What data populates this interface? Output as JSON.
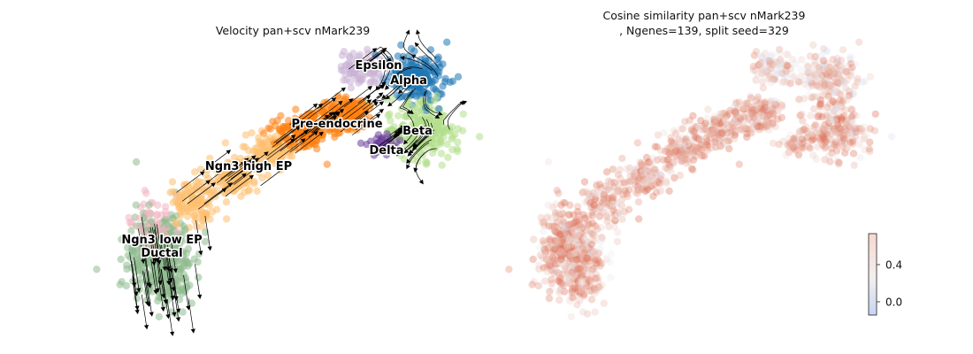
{
  "chart_data": [
    {
      "type": "scatter",
      "subtype": "embedding-velocity-stream",
      "title": "Velocity pan+scv nMark239",
      "axes_visible": false,
      "grid": false,
      "clusters": [
        {
          "name": "Ductal",
          "color": "#8fbc8f"
        },
        {
          "name": "Ngn3 low EP",
          "color": "#f4b6c2"
        },
        {
          "name": "Ngn3 high EP",
          "color": "#fdbf6f"
        },
        {
          "name": "Pre-endocrine",
          "color": "#ff7f0e"
        },
        {
          "name": "Beta",
          "color": "#b2df8a"
        },
        {
          "name": "Alpha",
          "color": "#1f77b4"
        },
        {
          "name": "Delta",
          "color": "#6a3d9a"
        },
        {
          "name": "Epsilon",
          "color": "#cab2d6"
        }
      ],
      "stream_arrows": true
    },
    {
      "type": "scatter",
      "subtype": "embedding-colored",
      "title": "Cosine similarity pan+scv nMark239",
      "title_line2": ", Ngenes=139, split seed=329",
      "axes_visible": false,
      "grid": false,
      "colorbar": {
        "ticks": [
          "0.0",
          "0.4"
        ],
        "colormap": "coolwarm",
        "low_color": "#c9d3f2",
        "mid_color": "#f2efee",
        "high_color": "#dd6b4f"
      }
    }
  ]
}
